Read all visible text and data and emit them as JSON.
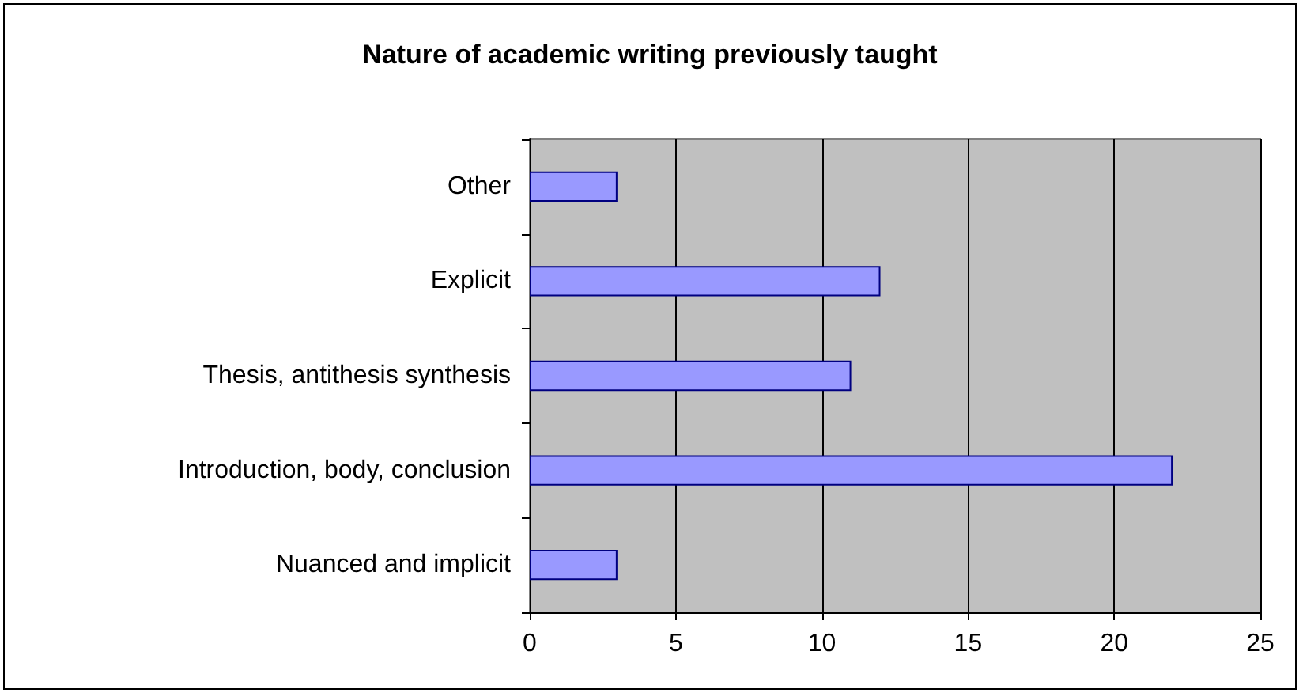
{
  "chart_data": {
    "type": "bar",
    "orientation": "horizontal",
    "title": "Nature of academic writing previously taught",
    "categories": [
      "Other",
      "Explicit",
      "Thesis, antithesis synthesis",
      "Introduction, body, conclusion",
      "Nuanced and implicit"
    ],
    "values": [
      3,
      12,
      11,
      22,
      3
    ],
    "color": "#9999ff",
    "xlim": [
      0,
      25
    ],
    "xticks": [
      0,
      5,
      10,
      15,
      20,
      25
    ],
    "grid": "x"
  }
}
